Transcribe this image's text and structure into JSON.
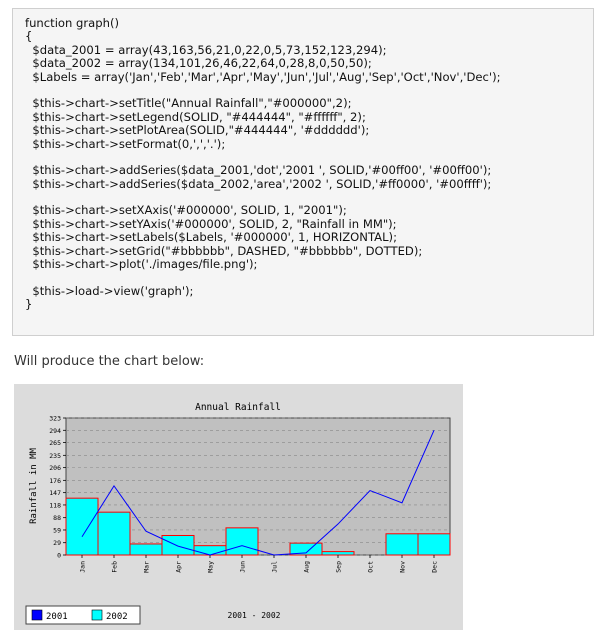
{
  "code": {
    "lines": [
      "function graph()",
      "{",
      "  $data_2001 = array(43,163,56,21,0,22,0,5,73,152,123,294);",
      "  $data_2002 = array(134,101,26,46,22,64,0,28,8,0,50,50);",
      "  $Labels = array('Jan','Feb','Mar','Apr','May','Jun','Jul','Aug','Sep','Oct','Nov','Dec');",
      "",
      "  $this->chart->setTitle(\"Annual Rainfall\",\"#000000\",2);",
      "  $this->chart->setLegend(SOLID, \"#444444\", \"#ffffff\", 2);",
      "  $this->chart->setPlotArea(SOLID,\"#444444\", '#dddddd');",
      "  $this->chart->setFormat(0,',','.');",
      "",
      "  $this->chart->addSeries($data_2001,'dot','2001 ', SOLID,'#00ff00', '#00ff00');",
      "  $this->chart->addSeries($data_2002,'area','2002 ', SOLID,'#ff0000', '#00ffff');",
      "",
      "  $this->chart->setXAxis('#000000', SOLID, 1, \"2001\");",
      "  $this->chart->setYAxis('#000000', SOLID, 2, \"Rainfall in MM\");",
      "  $this->chart->setLabels($Labels, '#000000', 1, HORIZONTAL);",
      "  $this->chart->setGrid(\"#bbbbbb\", DASHED, \"#bbbbbb\", DOTTED);",
      "  $this->chart->plot('./images/file.png');",
      "",
      "  $this->load->view('graph');",
      "}"
    ]
  },
  "caption": "Will produce the chart below:",
  "chart_data": {
    "type": "line",
    "title": "Annual Rainfall",
    "ylabel": "Rainfall in MM",
    "xlabel": "2001 - 2002",
    "categories": [
      "Jan",
      "Feb",
      "Mar",
      "Apr",
      "May",
      "Jun",
      "Jul",
      "Aug",
      "Sep",
      "Oct",
      "Nov",
      "Dec"
    ],
    "yticks": [
      0,
      29,
      59,
      88,
      118,
      147,
      176,
      206,
      235,
      265,
      294,
      323
    ],
    "ylim": [
      0,
      323
    ],
    "grid": true,
    "legend_position": "bottom-left",
    "series": [
      {
        "name": "2001",
        "style": "line",
        "color": "#0000ff",
        "values": [
          43,
          163,
          56,
          21,
          0,
          22,
          0,
          5,
          73,
          152,
          123,
          294
        ]
      },
      {
        "name": "2002",
        "style": "area",
        "color": "#00ffff",
        "edge_color": "#ff0000",
        "values": [
          134,
          101,
          26,
          46,
          22,
          64,
          0,
          28,
          8,
          0,
          50,
          50
        ]
      }
    ]
  }
}
